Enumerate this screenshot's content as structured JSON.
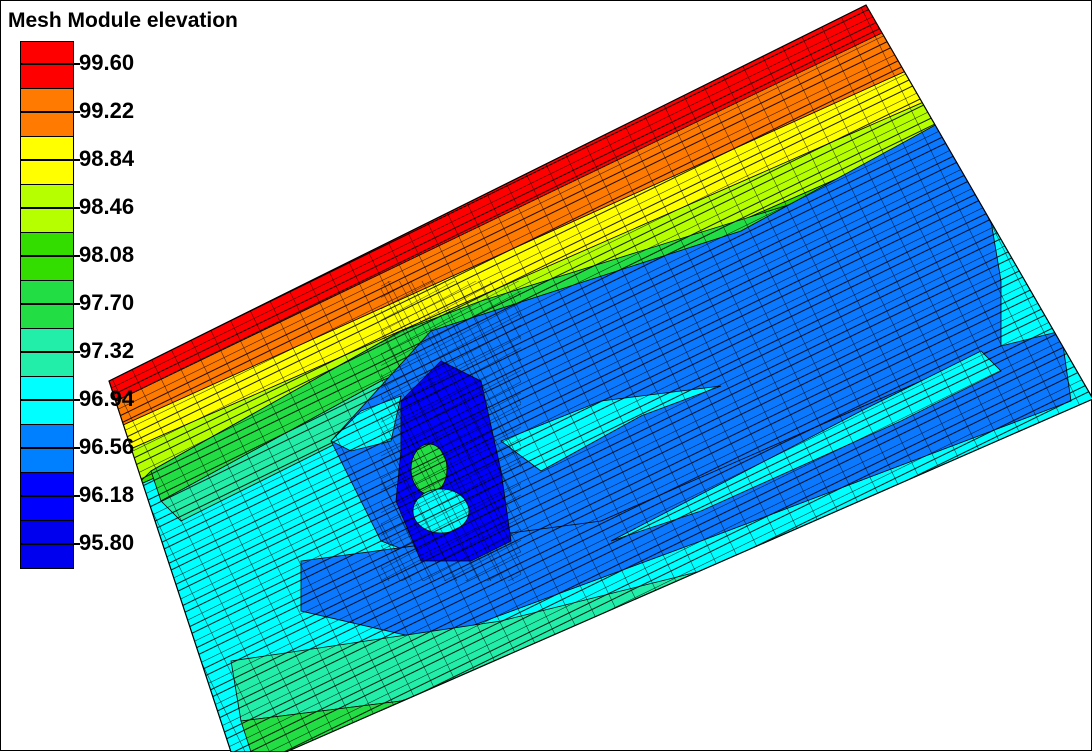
{
  "legend": {
    "title": "Mesh Module elevation",
    "values": [
      "99.60",
      "99.22",
      "98.84",
      "98.46",
      "98.08",
      "97.70",
      "97.32",
      "96.94",
      "96.56",
      "96.18",
      "95.80"
    ],
    "colors": [
      "#ff0000",
      "#ff7a00",
      "#ffff00",
      "#b5ff00",
      "#33dd00",
      "#22dd44",
      "#22eeaa",
      "#00ffff",
      "#0080ff",
      "#0000ff",
      "#0000ee"
    ]
  },
  "mesh": {
    "band_colors": {
      "red": "#ff0000",
      "orange": "#ff7a00",
      "yellow": "#ffff00",
      "yellow_green": "#b5ff00",
      "green": "#33dd00",
      "mid_green": "#22dd44",
      "sea_green": "#22eeaa",
      "cyan": "#00ffff",
      "blue": "#0a78ff",
      "deep_blue": "#0000ff"
    },
    "grid_color": "#000000"
  }
}
